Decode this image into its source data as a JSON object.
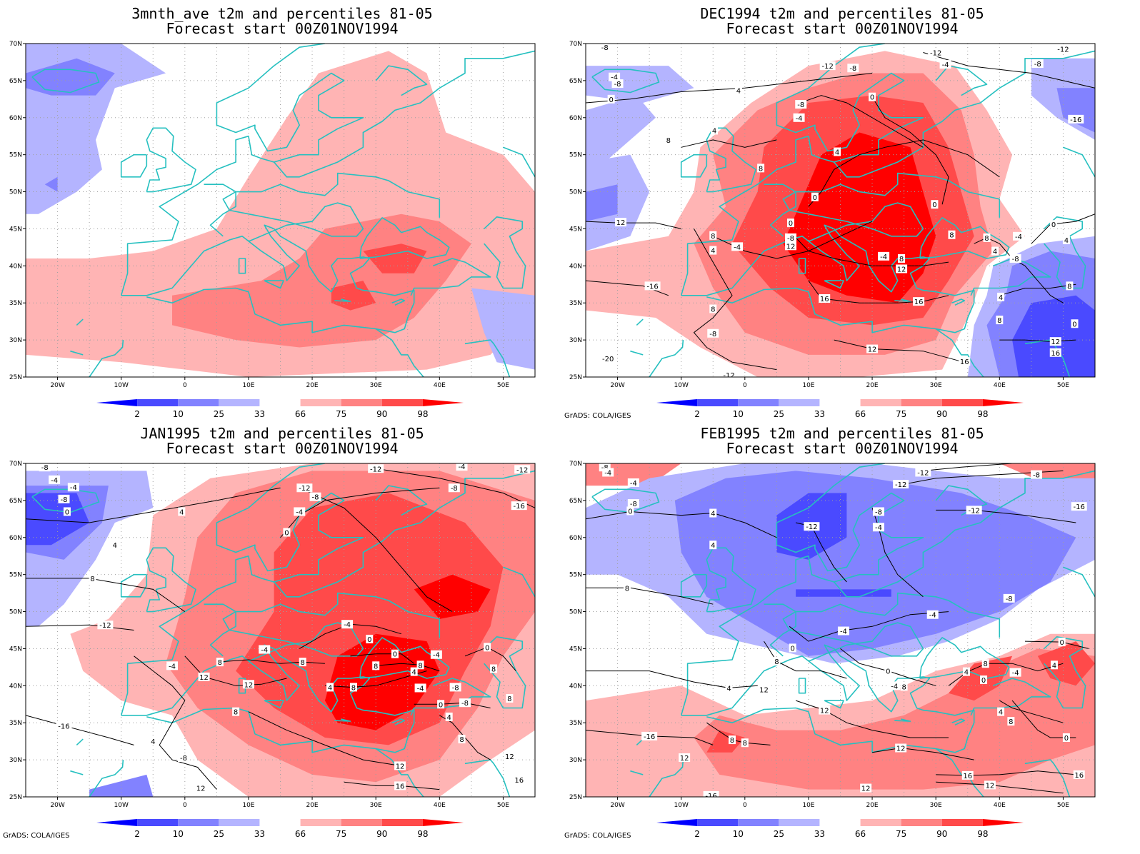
{
  "colors": {
    "blue_2": "#0000ff",
    "blue_10": "#4a4aff",
    "blue_25": "#8282ff",
    "blue_33": "#b4b4ff",
    "red_66": "#ffb4b4",
    "red_75": "#ff8282",
    "red_90": "#ff4a4a",
    "red_98": "#ff0000",
    "coast": "#26c0c0",
    "contour": "#000000"
  },
  "axes": {
    "lat_labels": [
      "70N",
      "65N",
      "60N",
      "55N",
      "50N",
      "45N",
      "40N",
      "35N",
      "30N",
      "25N"
    ],
    "lon_labels": [
      "20W",
      "10W",
      "0",
      "10E",
      "20E",
      "30E",
      "40E",
      "50E"
    ]
  },
  "legend_labels": [
    "2",
    "10",
    "25",
    "33",
    "66",
    "75",
    "90",
    "98"
  ],
  "credit": "GrADS: COLA/IGES",
  "panels": [
    {
      "title1": "3mnth_ave t2m and percentiles 81-05",
      "title2": "Forecast start 00Z01NOV1994",
      "show_credit": false,
      "contour_labels": []
    },
    {
      "title1": "DEC1994 t2m and percentiles 81-05",
      "title2": "Forecast start 00Z01NOV1994",
      "show_credit": true,
      "contour_labels": [
        {
          "t": "-8",
          "lon": -22,
          "lat": 69.5
        },
        {
          "t": "-4",
          "lon": -20.5,
          "lat": 65.5
        },
        {
          "t": "-8",
          "lon": -20,
          "lat": 64.6
        },
        {
          "t": "0",
          "lon": -21,
          "lat": 62.5
        },
        {
          "t": "4",
          "lon": -1,
          "lat": 63.7
        },
        {
          "t": "-12",
          "lon": 13,
          "lat": 67
        },
        {
          "t": "-8",
          "lon": 17,
          "lat": 66.7
        },
        {
          "t": "-12",
          "lon": 30,
          "lat": 68.8
        },
        {
          "t": "-4",
          "lon": 31.5,
          "lat": 67.2
        },
        {
          "t": "-12",
          "lon": 50,
          "lat": 69.3
        },
        {
          "t": "-8",
          "lon": 46,
          "lat": 67.3
        },
        {
          "t": "-8",
          "lon": 8.8,
          "lat": 61.8
        },
        {
          "t": "0",
          "lon": 20,
          "lat": 62.8
        },
        {
          "t": "-4",
          "lon": 8.5,
          "lat": 60
        },
        {
          "t": "4",
          "lon": -4.8,
          "lat": 58.3
        },
        {
          "t": "-16",
          "lon": 52,
          "lat": 59.8
        },
        {
          "t": "4",
          "lon": 14.5,
          "lat": 55.4
        },
        {
          "t": "8",
          "lon": -12,
          "lat": 57
        },
        {
          "t": "8",
          "lon": 2.5,
          "lat": 53.2
        },
        {
          "t": "0",
          "lon": 11,
          "lat": 49.3
        },
        {
          "t": "0",
          "lon": 29.8,
          "lat": 48.3
        },
        {
          "t": "12",
          "lon": -19.5,
          "lat": 45.9
        },
        {
          "t": "0",
          "lon": 7.2,
          "lat": 45.8
        },
        {
          "t": "-8",
          "lon": 7.2,
          "lat": 43.8
        },
        {
          "t": "12",
          "lon": 7.2,
          "lat": 42.7
        },
        {
          "t": "8",
          "lon": -5,
          "lat": 44.1
        },
        {
          "t": "4",
          "lon": -5,
          "lat": 42.1
        },
        {
          "t": "-4",
          "lon": -1.2,
          "lat": 42.6
        },
        {
          "t": "-4",
          "lon": 21.8,
          "lat": 41.3
        },
        {
          "t": "8",
          "lon": 24.6,
          "lat": 41
        },
        {
          "t": "12",
          "lon": 24.6,
          "lat": 39.6
        },
        {
          "t": "8",
          "lon": 32.5,
          "lat": 44.2
        },
        {
          "t": "8",
          "lon": 38,
          "lat": 43.8
        },
        {
          "t": "4",
          "lon": 39.3,
          "lat": 42
        },
        {
          "t": "-4",
          "lon": 43,
          "lat": 44
        },
        {
          "t": "-8",
          "lon": 42.5,
          "lat": 41
        },
        {
          "t": "0",
          "lon": 48.5,
          "lat": 45.6
        },
        {
          "t": "4",
          "lon": 50.5,
          "lat": 43.5
        },
        {
          "t": "8",
          "lon": 51,
          "lat": 37.3
        },
        {
          "t": "-16",
          "lon": -14.5,
          "lat": 37.3
        },
        {
          "t": "16",
          "lon": 12.5,
          "lat": 35.6
        },
        {
          "t": "16",
          "lon": 27.3,
          "lat": 35.2
        },
        {
          "t": "4",
          "lon": 40.2,
          "lat": 35.8
        },
        {
          "t": "8",
          "lon": 40,
          "lat": 32.7
        },
        {
          "t": "0",
          "lon": 51.8,
          "lat": 32.2
        },
        {
          "t": "8",
          "lon": -5,
          "lat": 34.2
        },
        {
          "t": "-8",
          "lon": -5,
          "lat": 30.9
        },
        {
          "t": "12",
          "lon": 48.8,
          "lat": 29.8
        },
        {
          "t": "16",
          "lon": 48.8,
          "lat": 28.3
        },
        {
          "t": "12",
          "lon": 20,
          "lat": 28.8
        },
        {
          "t": "-20",
          "lon": -21.5,
          "lat": 27.5
        },
        {
          "t": "16",
          "lon": 34.5,
          "lat": 27.1
        },
        {
          "t": "-12",
          "lon": -2.5,
          "lat": 25.3
        }
      ]
    },
    {
      "title1": "JAN1995 t2m and percentiles 81-05",
      "title2": "Forecast start 00Z01NOV1994",
      "show_credit": true,
      "contour_labels": [
        {
          "t": "-8",
          "lon": -22,
          "lat": 69.5
        },
        {
          "t": "-4",
          "lon": -20.5,
          "lat": 67.8
        },
        {
          "t": "-8",
          "lon": -19,
          "lat": 65.2
        },
        {
          "t": "-4",
          "lon": -17.5,
          "lat": 66.8
        },
        {
          "t": "0",
          "lon": -18.5,
          "lat": 63.5
        },
        {
          "t": "4",
          "lon": -0.5,
          "lat": 63.5
        },
        {
          "t": "-12",
          "lon": 18.8,
          "lat": 66.7
        },
        {
          "t": "-8",
          "lon": 20.5,
          "lat": 65.5
        },
        {
          "t": "-12",
          "lon": 30,
          "lat": 69.3
        },
        {
          "t": "-4",
          "lon": 43.5,
          "lat": 69.6
        },
        {
          "t": "-8",
          "lon": 42.3,
          "lat": 66.7
        },
        {
          "t": "-12",
          "lon": 53,
          "lat": 69.2
        },
        {
          "t": "-16",
          "lon": 52.5,
          "lat": 64.3
        },
        {
          "t": "-4",
          "lon": 18,
          "lat": 63.5
        },
        {
          "t": "0",
          "lon": 16,
          "lat": 60.7
        },
        {
          "t": "4",
          "lon": -11,
          "lat": 59
        },
        {
          "t": "8",
          "lon": -14.5,
          "lat": 54.5
        },
        {
          "t": "-12",
          "lon": -12.5,
          "lat": 48.2
        },
        {
          "t": "-4",
          "lon": 12.5,
          "lat": 44.9
        },
        {
          "t": "-4",
          "lon": 25.5,
          "lat": 48.3
        },
        {
          "t": "0",
          "lon": 29,
          "lat": 46.3
        },
        {
          "t": "0",
          "lon": 33,
          "lat": 44.3
        },
        {
          "t": "0",
          "lon": 47.5,
          "lat": 45.2
        },
        {
          "t": "-4",
          "lon": 39.5,
          "lat": 44.2
        },
        {
          "t": "8",
          "lon": 30,
          "lat": 42.7
        },
        {
          "t": "8",
          "lon": 37,
          "lat": 42.8
        },
        {
          "t": "4",
          "lon": 36,
          "lat": 41.9
        },
        {
          "t": "8",
          "lon": 48.5,
          "lat": 42.3
        },
        {
          "t": "-4",
          "lon": 37,
          "lat": 39.7
        },
        {
          "t": "-8",
          "lon": 42.5,
          "lat": 39.8
        },
        {
          "t": "0",
          "lon": 40.2,
          "lat": 37.5
        },
        {
          "t": "4",
          "lon": 22.8,
          "lat": 39.8
        },
        {
          "t": "8",
          "lon": 26.5,
          "lat": 39.8
        },
        {
          "t": "12",
          "lon": 10,
          "lat": 40.2
        },
        {
          "t": "12",
          "lon": 3,
          "lat": 41.2
        },
        {
          "t": "8",
          "lon": 5.5,
          "lat": 43.2
        },
        {
          "t": "8",
          "lon": 18.5,
          "lat": 43.2
        },
        {
          "t": "-4",
          "lon": -2,
          "lat": 42.7
        },
        {
          "t": "-8",
          "lon": 44,
          "lat": 37.7
        },
        {
          "t": "8",
          "lon": 51,
          "lat": 38.3
        },
        {
          "t": "8",
          "lon": 8,
          "lat": 36.5
        },
        {
          "t": "4",
          "lon": 41.5,
          "lat": 35.8
        },
        {
          "t": "-16",
          "lon": -19,
          "lat": 34.6
        },
        {
          "t": "4",
          "lon": -5,
          "lat": 32.5
        },
        {
          "t": "8",
          "lon": 43.5,
          "lat": 32.8
        },
        {
          "t": "12",
          "lon": 51,
          "lat": 30.5
        },
        {
          "t": "-8",
          "lon": -0.2,
          "lat": 30.3
        },
        {
          "t": "12",
          "lon": 33.8,
          "lat": 29.2
        },
        {
          "t": "16",
          "lon": 33.8,
          "lat": 26.5
        },
        {
          "t": "16",
          "lon": 52.5,
          "lat": 27.3
        },
        {
          "t": "12",
          "lon": 2.5,
          "lat": 26.2
        }
      ]
    },
    {
      "title1": "FEB1995 t2m and percentiles 81-05",
      "title2": "Forecast start 00Z01NOV1994",
      "show_credit": true,
      "contour_labels": [
        {
          "t": "-8",
          "lon": -22,
          "lat": 69.5
        },
        {
          "t": "-4",
          "lon": -21.5,
          "lat": 68.8
        },
        {
          "t": "-4",
          "lon": -17.5,
          "lat": 67.4
        },
        {
          "t": "-8",
          "lon": -17.5,
          "lat": 64.6
        },
        {
          "t": "0",
          "lon": -18,
          "lat": 63.6
        },
        {
          "t": "4",
          "lon": -5,
          "lat": 63.3
        },
        {
          "t": "-12",
          "lon": 28,
          "lat": 68.8
        },
        {
          "t": "-12",
          "lon": 24.5,
          "lat": 67.2
        },
        {
          "t": "-8",
          "lon": 45.8,
          "lat": 68.5
        },
        {
          "t": "-16",
          "lon": 52.5,
          "lat": 64.2
        },
        {
          "t": "-12",
          "lon": 36,
          "lat": 63.7
        },
        {
          "t": "-12",
          "lon": 10.5,
          "lat": 61.5
        },
        {
          "t": "-8",
          "lon": 21,
          "lat": 63.5
        },
        {
          "t": "-4",
          "lon": 21,
          "lat": 61.4
        },
        {
          "t": "4",
          "lon": -5,
          "lat": 59
        },
        {
          "t": "8",
          "lon": -18.5,
          "lat": 53.2
        },
        {
          "t": "-8",
          "lon": 41.5,
          "lat": 51.8
        },
        {
          "t": "-4",
          "lon": 29.5,
          "lat": 49.6
        },
        {
          "t": "-4",
          "lon": 15.5,
          "lat": 47.4
        },
        {
          "t": "0",
          "lon": 7.5,
          "lat": 45.1
        },
        {
          "t": "0",
          "lon": 49.8,
          "lat": 45.9
        },
        {
          "t": "8",
          "lon": 5,
          "lat": 43.3
        },
        {
          "t": "0",
          "lon": 22.5,
          "lat": 42
        },
        {
          "t": "4",
          "lon": 34.8,
          "lat": 41.9
        },
        {
          "t": "8",
          "lon": 37.8,
          "lat": 43
        },
        {
          "t": "-4",
          "lon": 42.5,
          "lat": 41.8
        },
        {
          "t": "0",
          "lon": 37.5,
          "lat": 40.8
        },
        {
          "t": "4",
          "lon": 48.6,
          "lat": 42.8
        },
        {
          "t": "8",
          "lon": 25,
          "lat": 39.9
        },
        {
          "t": "-4",
          "lon": 23.5,
          "lat": 40
        },
        {
          "t": "12",
          "lon": 3,
          "lat": 39.5
        },
        {
          "t": "4",
          "lon": -2.5,
          "lat": 39.7
        },
        {
          "t": "12",
          "lon": 12.5,
          "lat": 36.7
        },
        {
          "t": "4",
          "lon": 40.2,
          "lat": 36.5
        },
        {
          "t": "8",
          "lon": 41.8,
          "lat": 35.2
        },
        {
          "t": "0",
          "lon": 50.5,
          "lat": 33
        },
        {
          "t": "-16",
          "lon": -15,
          "lat": 33.2
        },
        {
          "t": "8",
          "lon": -2,
          "lat": 32.7
        },
        {
          "t": "8",
          "lon": 0,
          "lat": 32.3
        },
        {
          "t": "12",
          "lon": -9.5,
          "lat": 30.3
        },
        {
          "t": "12",
          "lon": 24.5,
          "lat": 31.6
        },
        {
          "t": "16",
          "lon": 35,
          "lat": 27.9
        },
        {
          "t": "12",
          "lon": 38.5,
          "lat": 26.6
        },
        {
          "t": "16",
          "lon": 52.5,
          "lat": 28
        },
        {
          "t": "12",
          "lon": 19,
          "lat": 26.2
        },
        {
          "t": "-16",
          "lon": -5.3,
          "lat": 25.2
        }
      ]
    }
  ]
}
